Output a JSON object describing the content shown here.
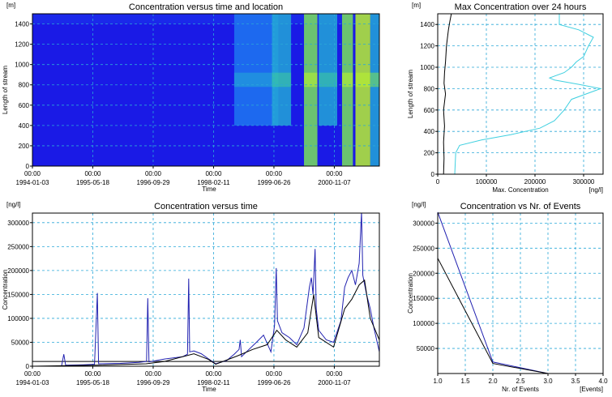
{
  "chart_data": [
    {
      "id": "heatmap",
      "type": "heatmap",
      "title": "Concentration versus time and location",
      "xlabel": "Time",
      "ylabel": "Length of stream",
      "yunit": "[m]",
      "ylim": [
        0,
        1500
      ],
      "yticks": [
        0,
        200,
        400,
        600,
        800,
        1000,
        1200,
        1400
      ],
      "xticks": [
        {
          "date": "1994-01-03",
          "time": "00:00"
        },
        {
          "date": "1995-05-18",
          "time": "00:00"
        },
        {
          "date": "1996-09-29",
          "time": "00:00"
        },
        {
          "date": "1998-02-11",
          "time": "00:00"
        },
        {
          "date": "1999-06-26",
          "time": "00:00"
        },
        {
          "date": "2000-11-07",
          "time": "00:00"
        }
      ],
      "xlim": [
        "1994-01-03",
        "2001-11-15"
      ],
      "bright_bands": [
        {
          "start": "1998-08-01",
          "end": "1999-08-01",
          "level": 0.35,
          "ymin": 400
        },
        {
          "start": "1999-06-10",
          "end": "1999-11-15",
          "level": 0.5,
          "ymin": 400
        },
        {
          "start": "2000-03-01",
          "end": "2000-06-20",
          "level": 0.85,
          "ymin": 0
        },
        {
          "start": "2000-07-01",
          "end": "2000-12-01",
          "level": 0.45,
          "ymin": 400
        },
        {
          "start": "2001-01-10",
          "end": "2001-04-10",
          "level": 0.8,
          "ymin": 0
        },
        {
          "start": "2001-05-01",
          "end": "2001-09-01",
          "level": 0.95,
          "ymin": 0
        },
        {
          "start": "2001-09-01",
          "end": "2001-11-15",
          "level": 0.55,
          "ymin": 0
        }
      ],
      "colorscale": [
        "#1a1ae6",
        "#1f49f0",
        "#1e78f0",
        "#23a6d6",
        "#3cc8a0",
        "#7ae05a",
        "#b8f030"
      ]
    },
    {
      "id": "maxconc",
      "type": "line",
      "title": "Max Concentration over 24 hours",
      "xlabel": "Max. Concentration",
      "xunit": "[ng/l]",
      "ylabel": "Length of stream",
      "yunit": "[m]",
      "xlim": [
        0,
        340000
      ],
      "ylim": [
        0,
        1500
      ],
      "xticks": [
        0,
        100000,
        200000,
        300000
      ],
      "yticks": [
        0,
        200,
        400,
        600,
        800,
        1000,
        1200,
        1400
      ],
      "series": [
        {
          "color": "#40d0e0",
          "points": [
            [
              35000,
              0
            ],
            [
              37000,
              200
            ],
            [
              45000,
              270
            ],
            [
              90000,
              320
            ],
            [
              150000,
              370
            ],
            [
              210000,
              430
            ],
            [
              240000,
              500
            ],
            [
              260000,
              600
            ],
            [
              275000,
              700
            ],
            [
              335000,
              800
            ],
            [
              290000,
              840
            ],
            [
              240000,
              880
            ],
            [
              230000,
              900
            ],
            [
              260000,
              950
            ],
            [
              275000,
              1000
            ],
            [
              285000,
              1050
            ],
            [
              300000,
              1100
            ],
            [
              310000,
              1200
            ],
            [
              320000,
              1280
            ],
            [
              290000,
              1350
            ],
            [
              250000,
              1400
            ],
            [
              250000,
              1500
            ]
          ]
        },
        {
          "color": "#000000",
          "points": [
            [
              12000,
              0
            ],
            [
              13000,
              150
            ],
            [
              12000,
              300
            ],
            [
              14000,
              450
            ],
            [
              12000,
              600
            ],
            [
              16000,
              750
            ],
            [
              13000,
              850
            ],
            [
              14000,
              950
            ],
            [
              16000,
              1050
            ],
            [
              18000,
              1200
            ],
            [
              22000,
              1350
            ],
            [
              25000,
              1430
            ],
            [
              28000,
              1500
            ]
          ]
        }
      ]
    },
    {
      "id": "timeseries",
      "type": "line",
      "title": "Concentration versus time",
      "xlabel": "Time",
      "ylabel": "Concentration",
      "yunit": "[ng/l]",
      "ylim": [
        0,
        320000
      ],
      "yticks": [
        0,
        50000,
        100000,
        150000,
        200000,
        250000,
        300000
      ],
      "xlim": [
        "1994-01-03",
        "2001-11-15"
      ],
      "xticks": [
        {
          "date": "1994-01-03",
          "time": "00:00"
        },
        {
          "date": "1995-05-18",
          "time": "00:00"
        },
        {
          "date": "1996-09-29",
          "time": "00:00"
        },
        {
          "date": "1998-02-11",
          "time": "00:00"
        },
        {
          "date": "1999-06-26",
          "time": "00:00"
        },
        {
          "date": "2000-11-07",
          "time": "00:00"
        }
      ],
      "threshold": 10000,
      "series": [
        {
          "color": "#2020b0",
          "points": [
            [
              "1994-01-03",
              0
            ],
            [
              "1994-09-01",
              0
            ],
            [
              "1994-09-20",
              25000
            ],
            [
              "1994-10-05",
              2000
            ],
            [
              "1995-03-01",
              3000
            ],
            [
              "1995-06-01",
              4000
            ],
            [
              "1995-06-25",
              153000
            ],
            [
              "1995-07-05",
              5000
            ],
            [
              "1996-01-01",
              6000
            ],
            [
              "1996-06-01",
              8000
            ],
            [
              "1996-08-05",
              10000
            ],
            [
              "1996-08-15",
              142000
            ],
            [
              "1996-08-25",
              9000
            ],
            [
              "1997-01-01",
              15000
            ],
            [
              "1997-06-01",
              20000
            ],
            [
              "1997-07-10",
              25000
            ],
            [
              "1997-07-20",
              183000
            ],
            [
              "1997-07-28",
              30000
            ],
            [
              "1997-09-01",
              32000
            ],
            [
              "1997-11-01",
              26000
            ],
            [
              "1998-01-01",
              15000
            ],
            [
              "1998-03-01",
              5000
            ],
            [
              "1998-06-01",
              12000
            ],
            [
              "1998-08-01",
              25000
            ],
            [
              "1998-09-10",
              35000
            ],
            [
              "1998-09-20",
              55000
            ],
            [
              "1998-10-01",
              20000
            ],
            [
              "1998-12-01",
              35000
            ],
            [
              "1999-02-01",
              50000
            ],
            [
              "1999-04-01",
              65000
            ],
            [
              "1999-06-01",
              30000
            ],
            [
              "1999-07-01",
              85000
            ],
            [
              "1999-07-15",
              205000
            ],
            [
              "1999-07-25",
              95000
            ],
            [
              "1999-09-01",
              70000
            ],
            [
              "1999-11-01",
              60000
            ],
            [
              "2000-01-01",
              45000
            ],
            [
              "2000-03-01",
              80000
            ],
            [
              "2000-04-15",
              165000
            ],
            [
              "2000-05-01",
              185000
            ],
            [
              "2000-05-15",
              150000
            ],
            [
              "2000-06-01",
              245000
            ],
            [
              "2000-06-10",
              120000
            ],
            [
              "2000-07-01",
              75000
            ],
            [
              "2000-09-01",
              55000
            ],
            [
              "2000-11-01",
              50000
            ],
            [
              "2001-01-01",
              95000
            ],
            [
              "2001-02-01",
              165000
            ],
            [
              "2001-03-01",
              185000
            ],
            [
              "2001-04-01",
              200000
            ],
            [
              "2001-05-01",
              170000
            ],
            [
              "2001-06-01",
              215000
            ],
            [
              "2001-06-20",
              322000
            ],
            [
              "2001-07-01",
              190000
            ],
            [
              "2001-08-01",
              150000
            ],
            [
              "2001-09-01",
              120000
            ],
            [
              "2001-10-01",
              80000
            ],
            [
              "2001-11-15",
              30000
            ]
          ]
        },
        {
          "color": "#000000",
          "points": [
            [
              "1994-01-03",
              0
            ],
            [
              "1995-06-01",
              2000
            ],
            [
              "1996-08-01",
              5000
            ],
            [
              "1997-01-01",
              10000
            ],
            [
              "1997-09-01",
              26000
            ],
            [
              "1998-01-01",
              14000
            ],
            [
              "1998-03-01",
              4000
            ],
            [
              "1998-09-01",
              22000
            ],
            [
              "1999-01-01",
              35000
            ],
            [
              "1999-05-01",
              45000
            ],
            [
              "1999-07-20",
              75000
            ],
            [
              "1999-10-01",
              55000
            ],
            [
              "2000-01-01",
              40000
            ],
            [
              "2000-04-01",
              70000
            ],
            [
              "2000-05-20",
              150000
            ],
            [
              "2000-07-01",
              60000
            ],
            [
              "2000-11-01",
              40000
            ],
            [
              "2001-02-01",
              120000
            ],
            [
              "2001-04-01",
              140000
            ],
            [
              "2001-06-01",
              170000
            ],
            [
              "2001-07-15",
              180000
            ],
            [
              "2001-09-01",
              100000
            ],
            [
              "2001-11-15",
              55000
            ]
          ]
        }
      ]
    },
    {
      "id": "events",
      "type": "line",
      "title": "Concentration vs Nr. of Events",
      "xlabel": "Nr. of Events",
      "xunit": "[Events]",
      "ylabel": "Concentration",
      "yunit": "[ng/l]",
      "xlim": [
        1.0,
        4.0
      ],
      "ylim": [
        0,
        320000
      ],
      "xticks": [
        1.0,
        1.5,
        2.0,
        2.5,
        3.0,
        3.5,
        4.0
      ],
      "yticks": [
        50000,
        100000,
        150000,
        200000,
        250000,
        300000
      ],
      "series": [
        {
          "color": "#2020b0",
          "points": [
            [
              1.0,
              322000
            ],
            [
              2.0,
              23000
            ],
            [
              3.0,
              0
            ]
          ]
        },
        {
          "color": "#000000",
          "points": [
            [
              1.0,
              230000
            ],
            [
              2.0,
              20000
            ],
            [
              3.0,
              0
            ]
          ]
        }
      ]
    }
  ]
}
